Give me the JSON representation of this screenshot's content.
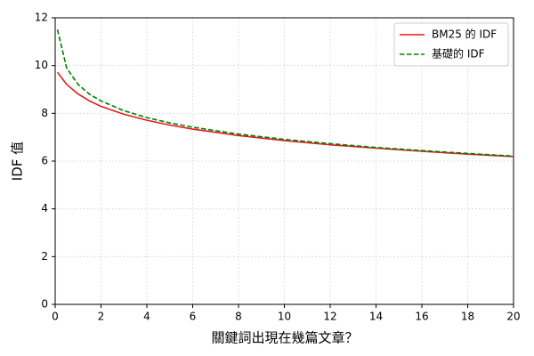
{
  "chart_data": {
    "type": "line",
    "xlabel": "關鍵詞出現在幾篇文章？",
    "ylabel": "IDF 值",
    "x": [
      0.1,
      0.5,
      1,
      1.5,
      2,
      3,
      4,
      5,
      6,
      8,
      10,
      12,
      14,
      16,
      18,
      20
    ],
    "series": [
      {
        "name": "BM25 的 IDF",
        "color": "#e41a1c",
        "dash": "solid",
        "values": [
          9.72,
          9.21,
          8.81,
          8.52,
          8.29,
          7.96,
          7.71,
          7.51,
          7.34,
          7.07,
          6.86,
          6.68,
          6.54,
          6.41,
          6.29,
          6.19
        ]
      },
      {
        "name": "基礎的 IDF",
        "color": "#008000",
        "dash": "dashed",
        "values": [
          11.51,
          9.9,
          9.21,
          8.8,
          8.52,
          8.11,
          7.82,
          7.6,
          7.42,
          7.13,
          6.91,
          6.73,
          6.57,
          6.44,
          6.32,
          6.21
        ]
      }
    ],
    "xlim": [
      0,
      20
    ],
    "xticks": [
      0,
      2,
      4,
      6,
      8,
      10,
      12,
      14,
      16,
      18,
      20
    ],
    "ylim": [
      0,
      12
    ],
    "yticks": [
      0,
      2,
      4,
      6,
      8,
      10,
      12
    ],
    "grid": true,
    "legend": "upper right"
  }
}
